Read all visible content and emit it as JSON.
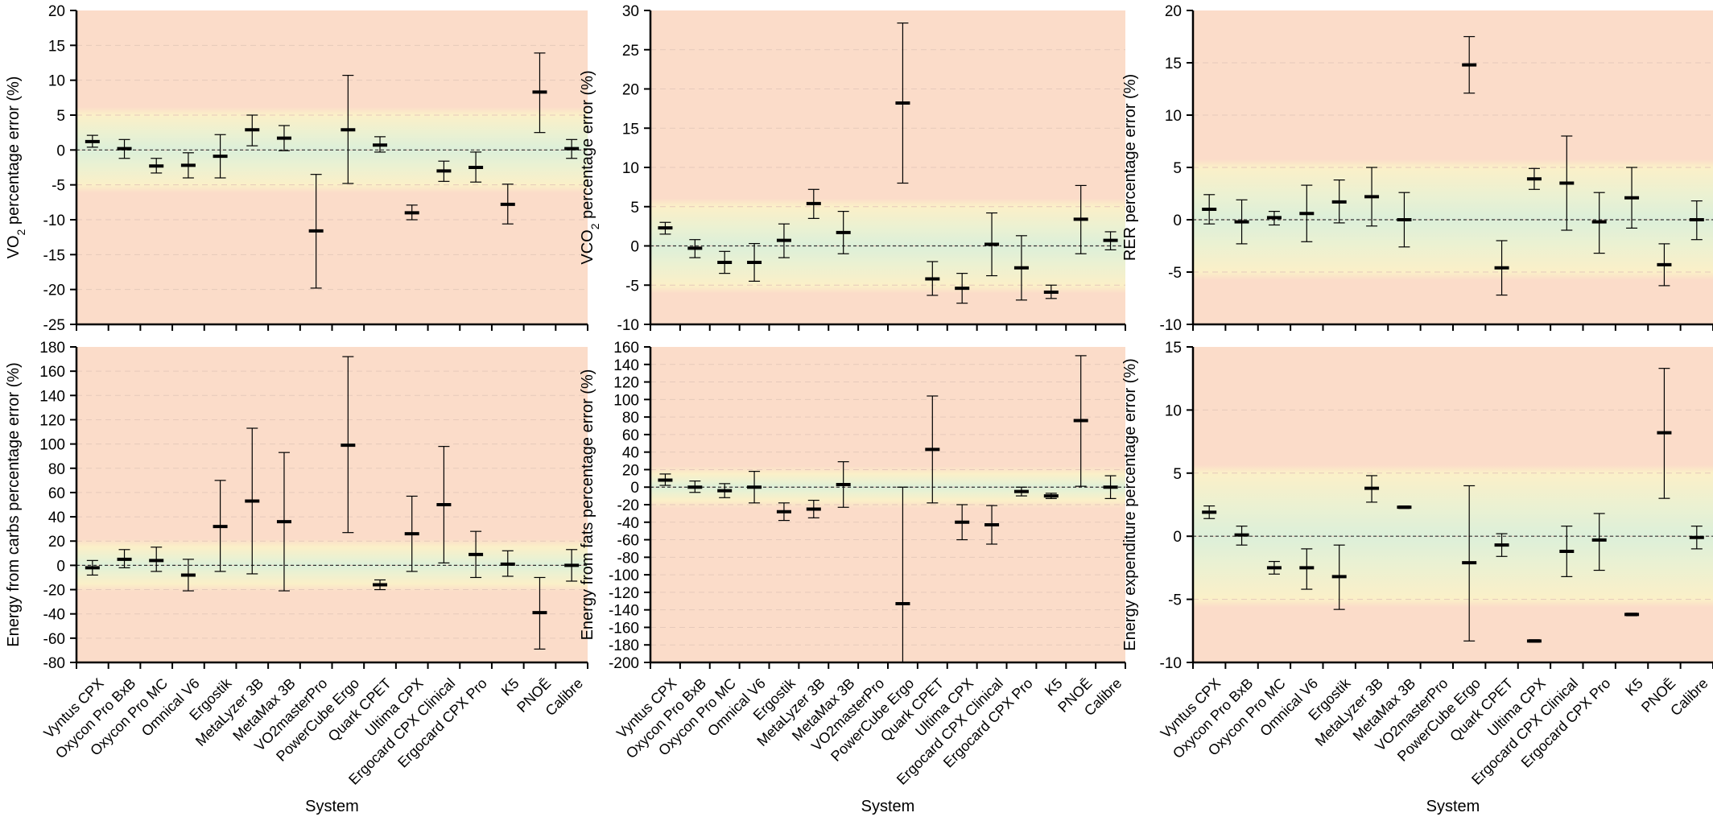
{
  "categories": [
    "Vyntus CPX",
    "Oxycon Pro BxB",
    "Oxycon Pro MC",
    "Omnical V6",
    "Ergostik",
    "MetaLyzer 3B",
    "MetaMax 3B",
    "VO2masterPro",
    "PowerCube Ergo",
    "Quark CPET",
    "Ultima CPX",
    "Ergocard CPX Clinical",
    "Ergocard CPX Pro",
    "K5",
    "PNOĒ",
    "Calibre"
  ],
  "chart_data": [
    {
      "type": "scatter",
      "ylabel": [
        "VO",
        "2",
        " percentage error (%)"
      ],
      "xlabel": "",
      "ylim": [
        -25,
        20
      ],
      "yticks": [
        -25,
        -20,
        -15,
        -10,
        -5,
        0,
        5,
        10,
        15,
        20
      ],
      "zones": {
        "green": 2,
        "yellow": 5
      },
      "values": [
        1.2,
        0.2,
        -2.3,
        -2.2,
        -0.9,
        2.9,
        1.7,
        -11.6,
        2.9,
        0.7,
        -9.0,
        -3.0,
        -2.5,
        -7.8,
        8.3,
        0.2
      ],
      "err_low": [
        0.4,
        -1.2,
        -3.3,
        -4.0,
        -4.0,
        0.6,
        -0.1,
        -19.8,
        -4.8,
        -0.3,
        -10.0,
        -4.5,
        -4.6,
        -10.6,
        2.5,
        -1.2
      ],
      "err_high": [
        2.1,
        1.5,
        -1.2,
        -0.4,
        2.2,
        5.0,
        3.5,
        -3.5,
        10.7,
        1.9,
        -7.9,
        -1.6,
        -0.3,
        -4.9,
        13.9,
        1.5
      ]
    },
    {
      "type": "scatter",
      "ylabel": [
        "VCO",
        "2",
        " percentage error (%)"
      ],
      "xlabel": "",
      "ylim": [
        -10,
        30
      ],
      "yticks": [
        -10,
        -5,
        0,
        5,
        10,
        15,
        20,
        25,
        30
      ],
      "zones": {
        "green": 2,
        "yellow": 5
      },
      "values": [
        2.3,
        -0.3,
        -2.1,
        -2.1,
        0.7,
        5.4,
        1.7,
        null,
        18.2,
        -4.2,
        -5.4,
        0.2,
        -2.8,
        -5.9,
        3.4,
        0.7
      ],
      "err_low": [
        1.5,
        -1.5,
        -3.5,
        -4.5,
        -1.5,
        3.5,
        -1.0,
        null,
        8.0,
        -6.3,
        -7.3,
        -3.8,
        -6.9,
        -6.7,
        -1.0,
        -0.5
      ],
      "err_high": [
        3.0,
        0.8,
        -0.7,
        0.3,
        2.8,
        7.2,
        4.4,
        null,
        28.4,
        -2.0,
        -3.5,
        4.2,
        1.3,
        -5.0,
        7.7,
        1.8
      ]
    },
    {
      "type": "scatter",
      "ylabel": [
        "RER percentage error (%)"
      ],
      "xlabel": "",
      "ylim": [
        -10,
        20
      ],
      "yticks": [
        -10,
        -5,
        0,
        5,
        10,
        15,
        20
      ],
      "zones": {
        "green": 2,
        "yellow": 5
      },
      "values": [
        1.0,
        -0.2,
        0.2,
        0.6,
        1.7,
        2.2,
        0.0,
        null,
        14.8,
        -4.6,
        3.9,
        3.5,
        -0.2,
        2.1,
        -4.3,
        0.0
      ],
      "err_low": [
        -0.4,
        -2.3,
        -0.5,
        -2.1,
        -0.3,
        -0.6,
        -2.6,
        null,
        12.1,
        -7.2,
        2.9,
        -1.0,
        -3.2,
        -0.8,
        -6.3,
        -1.9
      ],
      "err_high": [
        2.4,
        1.9,
        0.8,
        3.3,
        3.8,
        5.0,
        2.6,
        null,
        17.5,
        -2.0,
        4.9,
        8.0,
        2.6,
        5.0,
        -2.3,
        1.8
      ]
    },
    {
      "type": "scatter",
      "ylabel": [
        "Energy from carbs percentage error (%)"
      ],
      "xlabel": "System",
      "ylim": [
        -80,
        180
      ],
      "yticks": [
        -80,
        -60,
        -40,
        -20,
        0,
        20,
        40,
        60,
        80,
        100,
        120,
        140,
        160,
        180
      ],
      "zones": {
        "green": 5,
        "yellow": 15
      },
      "values": [
        -2,
        5,
        4,
        -8,
        32,
        53,
        36,
        null,
        99,
        -16,
        26,
        50,
        9,
        1,
        -39,
        0
      ],
      "err_low": [
        -8,
        -2,
        -5,
        -21,
        -5,
        -7,
        -21,
        null,
        27,
        -20,
        -5,
        2,
        -10,
        -9,
        -69,
        -13
      ],
      "err_high": [
        4,
        13,
        15,
        5,
        70,
        113,
        93,
        null,
        172,
        -12,
        57,
        98,
        28,
        12,
        -10,
        13
      ]
    },
    {
      "type": "scatter",
      "ylabel": [
        "Energy from fats percentage error (%)"
      ],
      "xlabel": "System",
      "ylim": [
        -200,
        160
      ],
      "yticks": [
        -200,
        -180,
        -160,
        -140,
        -120,
        -100,
        -80,
        -60,
        -40,
        -20,
        0,
        20,
        40,
        60,
        80,
        100,
        120,
        140,
        160
      ],
      "zones": {
        "green": 5,
        "yellow": 15
      },
      "values": [
        8,
        0,
        -4,
        0,
        -28,
        -25,
        3,
        null,
        -133,
        43,
        -40,
        -43,
        -5,
        -10,
        76,
        0
      ],
      "err_low": [
        2,
        -6,
        -12,
        -18,
        -38,
        -35,
        -23,
        null,
        -200,
        -18,
        -60,
        -65,
        -10,
        -13,
        1,
        -13
      ],
      "err_high": [
        15,
        7,
        4,
        18,
        -18,
        -15,
        29,
        null,
        0,
        104,
        -20,
        -21,
        0,
        -7,
        150,
        13
      ]
    },
    {
      "type": "scatter",
      "ylabel": [
        "Energy expenditure percentage error (%)"
      ],
      "xlabel": "System",
      "ylim": [
        -10,
        15
      ],
      "yticks": [
        -10,
        -5,
        0,
        5,
        10,
        15
      ],
      "zones": {
        "green": 2,
        "yellow": 5
      },
      "values": [
        1.9,
        0.1,
        -2.5,
        -2.5,
        -3.2,
        3.8,
        2.3,
        null,
        -2.1,
        -0.7,
        -8.3,
        -1.2,
        -0.3,
        -6.2,
        8.2,
        -0.1
      ],
      "err_low": [
        1.4,
        -0.7,
        -3.0,
        -4.2,
        -5.8,
        2.7,
        2.2,
        null,
        -8.3,
        -1.6,
        -8.4,
        -3.2,
        -2.7,
        -6.3,
        3.0,
        -1.0
      ],
      "err_high": [
        2.4,
        0.8,
        -2.0,
        -1.0,
        -0.7,
        4.8,
        2.4,
        null,
        4.0,
        0.2,
        -8.2,
        0.8,
        1.8,
        -6.1,
        13.3,
        0.8
      ]
    }
  ]
}
